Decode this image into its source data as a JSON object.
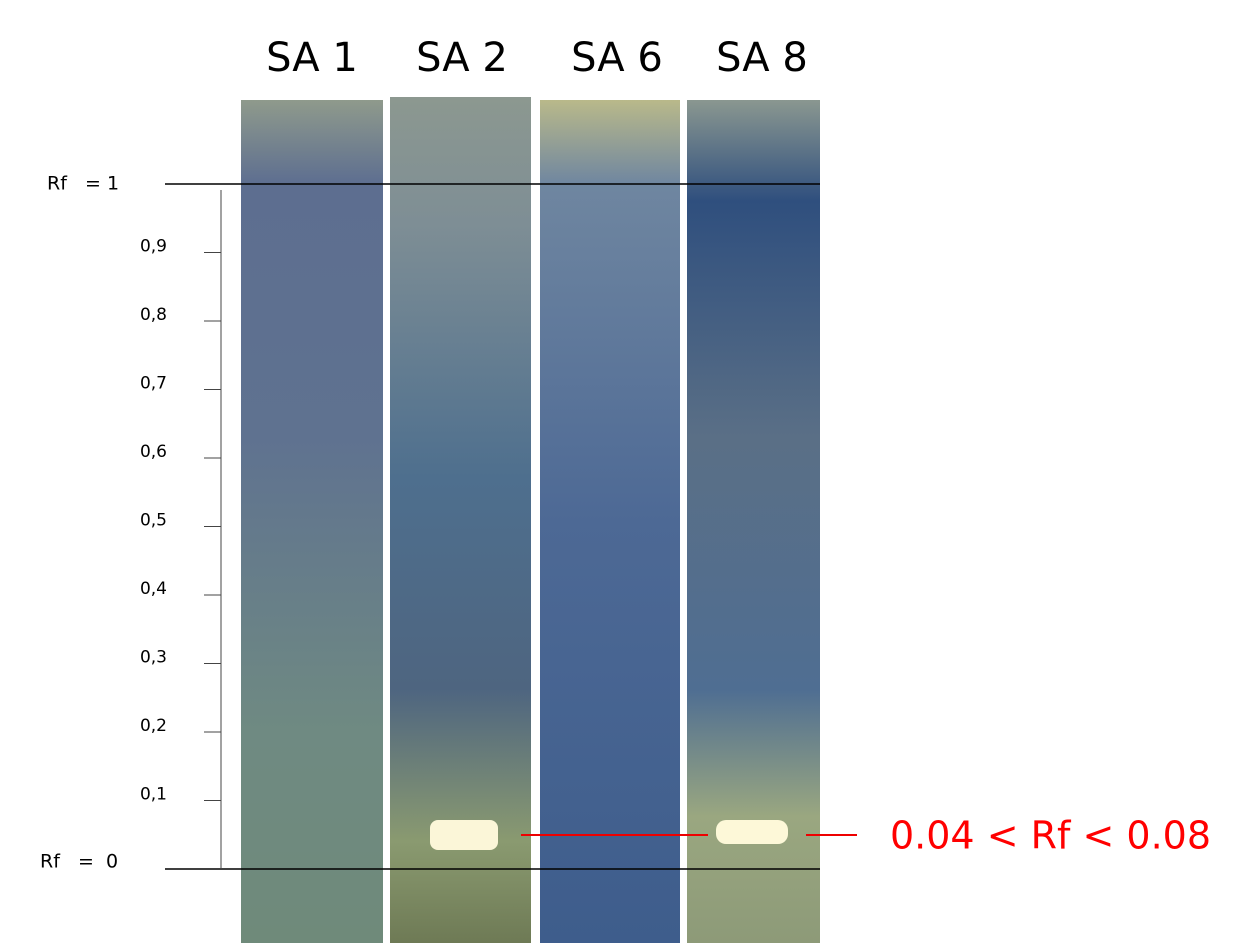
{
  "lanes": [
    "SA 1",
    "SA 2",
    "SA 6",
    "SA 8"
  ],
  "rf_top": "Rf   = 1",
  "rf_bottom": "Rf   =  0",
  "scale": [
    "0,9",
    "0,8",
    "0,7",
    "0,6",
    "0,5",
    "0,4",
    "0,3",
    "0,2",
    "0,1"
  ],
  "annotation": "0.04 < Rf < 0.08"
}
